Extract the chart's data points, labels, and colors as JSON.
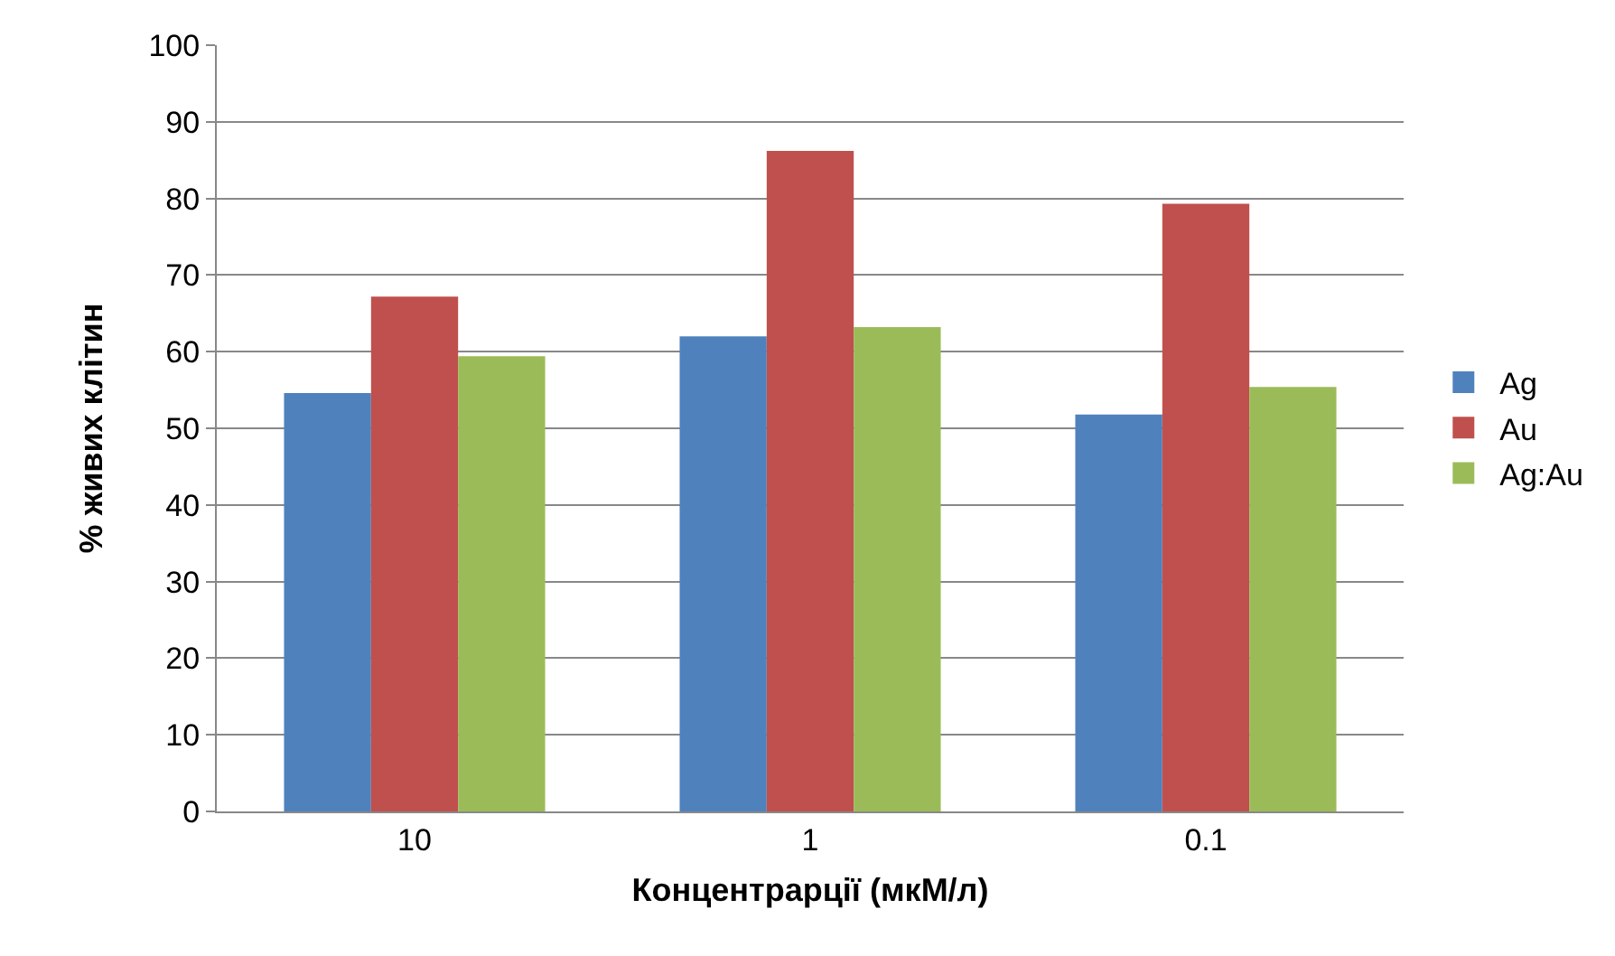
{
  "chart_data": {
    "type": "bar",
    "xlabel": "Концентрарції (мкМ/л)",
    "ylabel": "% живих клітин",
    "categories": [
      "10",
      "1",
      "0.1"
    ],
    "series": [
      {
        "name": "Ag",
        "color": "#4f81bd",
        "values": [
          54.6,
          62,
          51.8
        ]
      },
      {
        "name": "Au",
        "color": "#c0504d",
        "values": [
          67.2,
          86.2,
          79.3
        ]
      },
      {
        "name": "Ag:Au",
        "color": "#9bbb59",
        "values": [
          59.4,
          63.2,
          55.4
        ]
      }
    ],
    "ylim": [
      0,
      100
    ],
    "yticks": [
      0,
      10,
      20,
      30,
      40,
      50,
      60,
      70,
      80,
      90,
      100
    ],
    "grid": "y",
    "legend": "right"
  }
}
